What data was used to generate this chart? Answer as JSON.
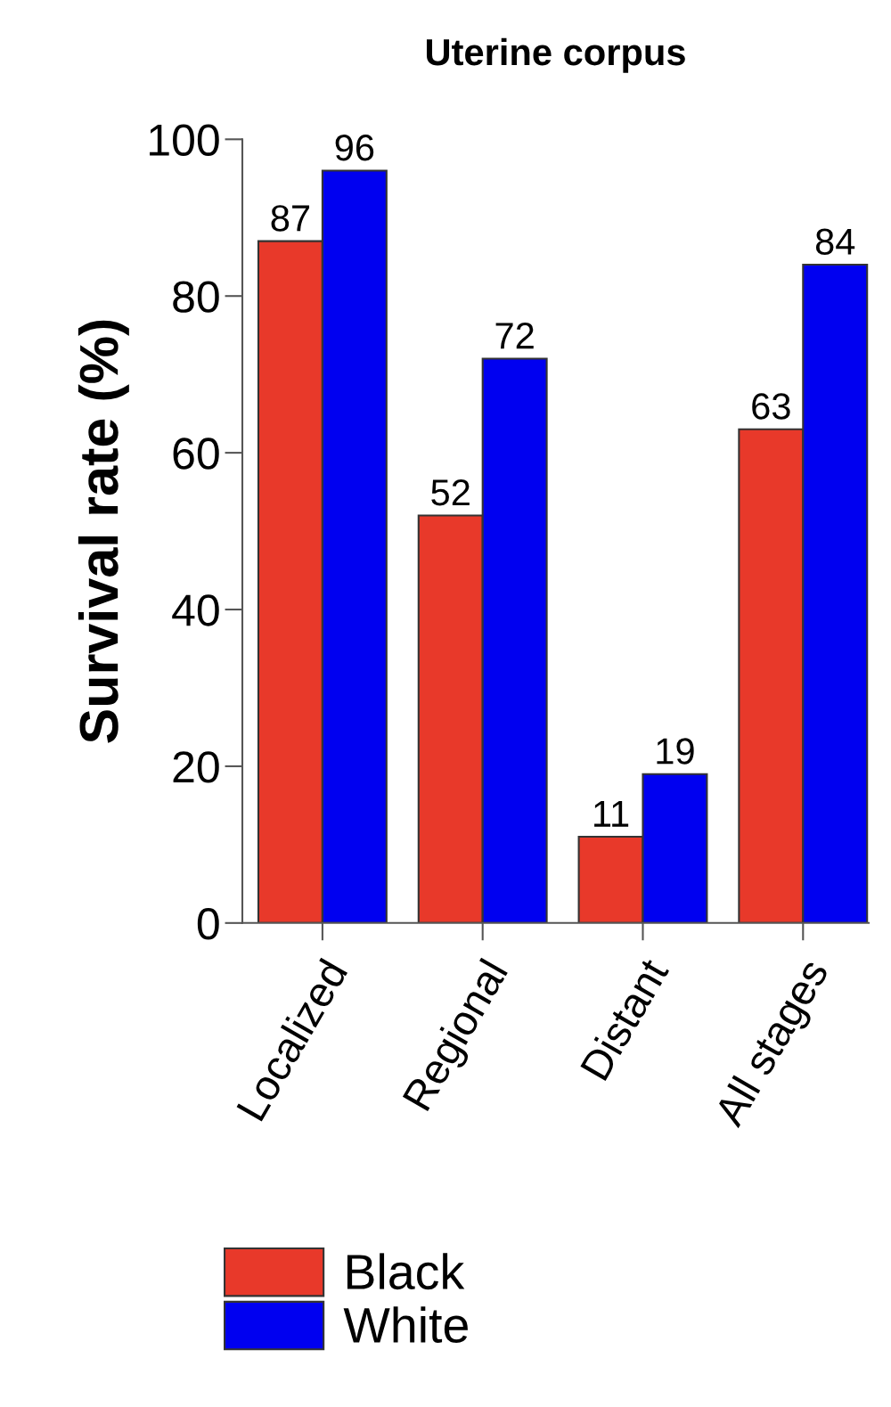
{
  "chart_data": {
    "type": "bar",
    "title": "Uterine corpus",
    "ylabel": "Survival rate (%)",
    "categories": [
      "Localized",
      "Regional",
      "Distant",
      "All stages"
    ],
    "series": [
      {
        "name": "Black",
        "color": "#e8392a",
        "values": [
          87,
          52,
          11,
          63
        ]
      },
      {
        "name": "White",
        "color": "#0000f0",
        "values": [
          96,
          72,
          19,
          84
        ]
      }
    ],
    "ylim": [
      0,
      100
    ],
    "yticks": [
      0,
      20,
      40,
      60,
      80,
      100
    ],
    "data_labels": true,
    "legend": "bottom",
    "grid": false
  }
}
